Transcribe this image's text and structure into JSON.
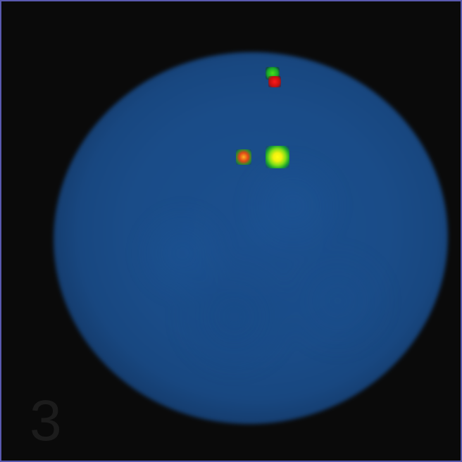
{
  "image": {
    "panel_label": "3",
    "colors": {
      "background": "#0a0a0a",
      "border": "#5a5ab0",
      "nucleus": "#1b4f8e",
      "signal_green": "#18a828",
      "signal_red": "#ff1a1a",
      "signal_yellow": "#ffff10"
    }
  }
}
